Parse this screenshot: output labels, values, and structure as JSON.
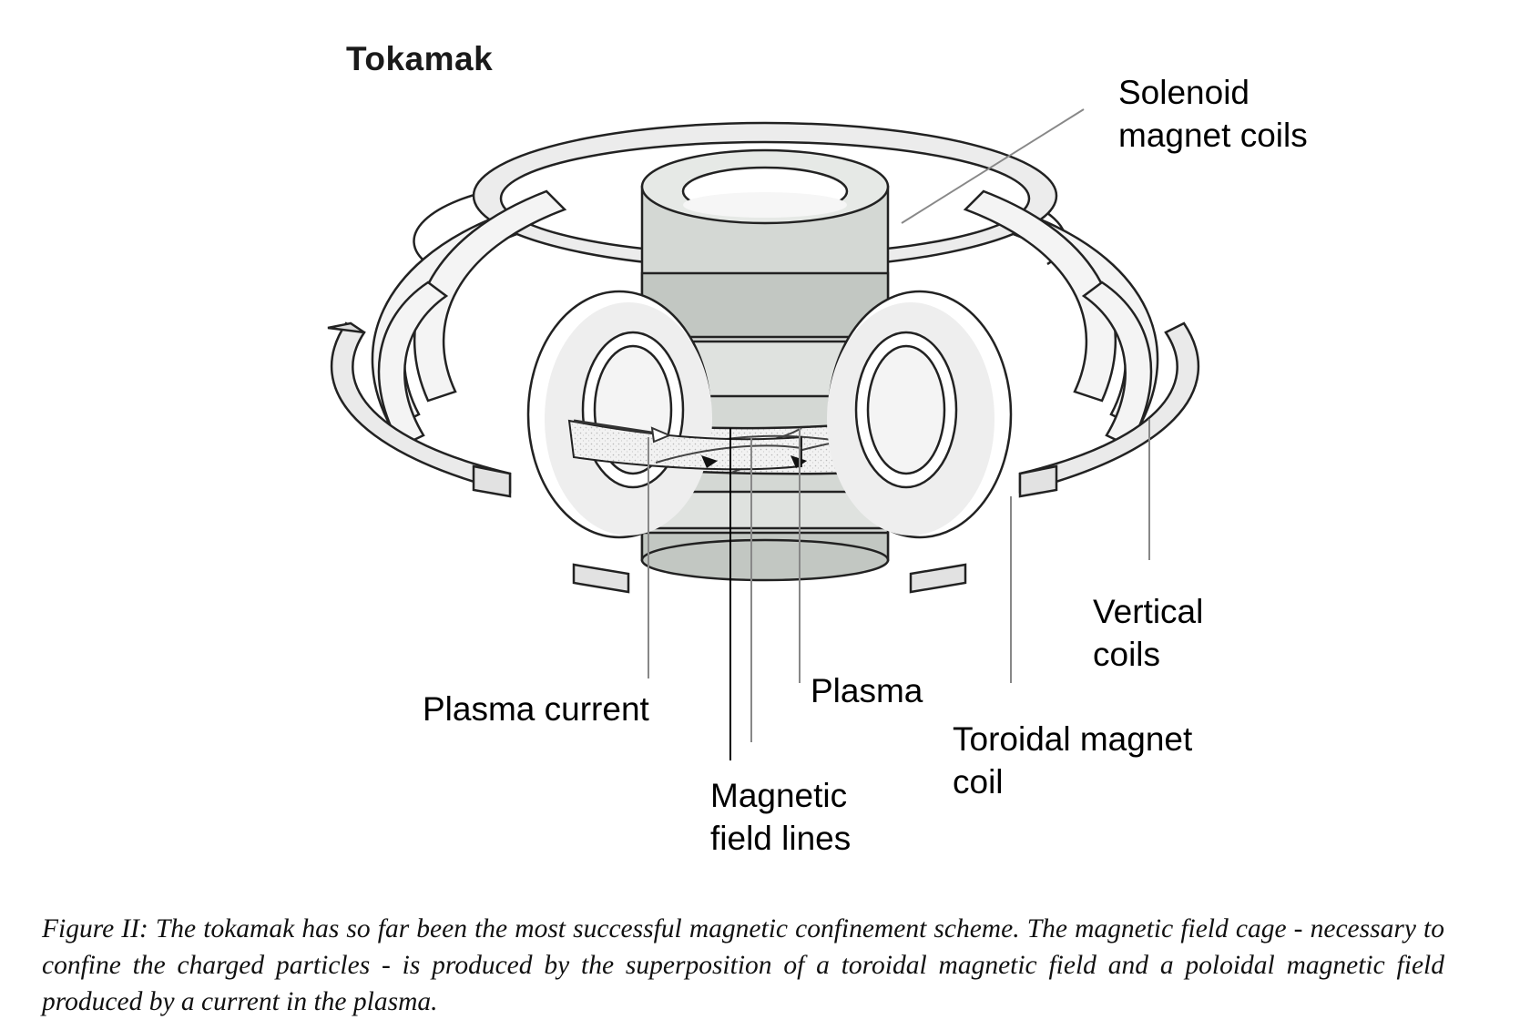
{
  "figure": {
    "title": "Tokamak",
    "labels": {
      "solenoid": "Solenoid\nmagnet coils",
      "vertical_coils": "Vertical\ncoils",
      "plasma": "Plasma",
      "plasma_current": "Plasma current",
      "toroidal_coil": "Toroidal magnet\ncoil",
      "field_lines": "Magnetic\nfield lines"
    },
    "caption": "Figure II: The tokamak has so far been the most successful magnetic confinement scheme. The magnetic field cage - necessary to confine the charged particles - is produced by the superposition of a toroidal magnetic field and a poloidal magnetic field produced by a current in the plasma."
  },
  "colors": {
    "coil_fill": "#eeeeee",
    "coil_shade": "#cccccc",
    "solenoid_fill": "#d4d8d4",
    "solenoid_dark": "#b7bcb7",
    "outline": "#222222",
    "leader": "#888888"
  }
}
